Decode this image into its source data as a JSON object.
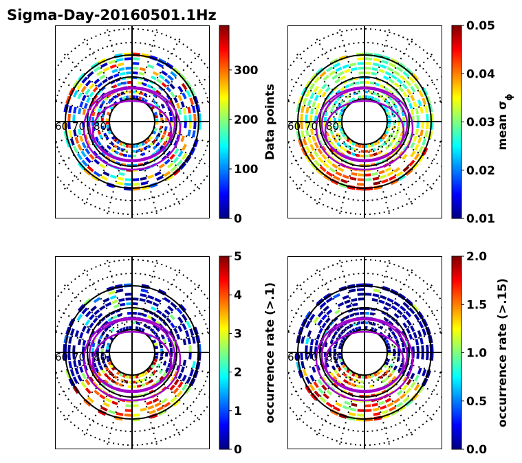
{
  "figure": {
    "title": "Sigma-Day-20160501.1Hz"
  },
  "colors": {
    "colormap": [
      "#00007f",
      "#0000ff",
      "#007fff",
      "#00ffff",
      "#7fff7f",
      "#ffff00",
      "#ff7f00",
      "#ff0000",
      "#7f0000"
    ],
    "mlt_grid": "#000000",
    "oval_boundary": "#a000c8"
  },
  "chart_data": [
    {
      "type": "heatmap",
      "projection": "polar",
      "title": "",
      "colorbar": {
        "label": "Data points",
        "range": [
          0,
          390
        ],
        "ticks": [
          "0",
          "100",
          "200",
          "300"
        ],
        "tick_values": [
          0,
          100,
          200,
          300
        ]
      },
      "latitude_labels": [
        "60",
        "70",
        "80"
      ],
      "seed": 7,
      "fill": 0.82,
      "bias": "uniform",
      "lowfrac": 0.35
    },
    {
      "type": "heatmap",
      "projection": "polar",
      "title": "",
      "colorbar": {
        "label": "mean σ",
        "label_sub": "ϕ",
        "range": [
          0.01,
          0.05
        ],
        "ticks": [
          "0.01",
          "0.02",
          "0.03",
          "0.04",
          "0.05"
        ],
        "tick_values": [
          0.01,
          0.02,
          0.03,
          0.04,
          0.05
        ]
      },
      "latitude_labels": [
        "60",
        "70",
        "80"
      ],
      "seed": 21,
      "fill": 0.86,
      "bias": "nightside",
      "lowfrac": 0.0
    },
    {
      "type": "heatmap",
      "projection": "polar",
      "title": "",
      "colorbar": {
        "label": "occurrence rate (>.1)",
        "range": [
          0,
          5
        ],
        "ticks": [
          "0",
          "1",
          "2",
          "3",
          "4",
          "5"
        ],
        "tick_values": [
          0,
          1,
          2,
          3,
          4,
          5
        ]
      },
      "latitude_labels": [
        "60",
        "70",
        "80"
      ],
      "seed": 44,
      "fill": 0.78,
      "bias": "nightside-sparse",
      "lowfrac": 0.75
    },
    {
      "type": "heatmap",
      "projection": "polar",
      "title": "",
      "colorbar": {
        "label": "occurrence rate (>.15)",
        "range": [
          0,
          2
        ],
        "ticks": [
          "0.0",
          "0.5",
          "1.0",
          "1.5",
          "2.0"
        ],
        "tick_values": [
          0.0,
          0.5,
          1.0,
          1.5,
          2.0
        ]
      },
      "latitude_labels": [
        "60",
        "70",
        "80"
      ],
      "seed": 63,
      "fill": 0.78,
      "bias": "nightside-sparse",
      "lowfrac": 0.82
    }
  ]
}
